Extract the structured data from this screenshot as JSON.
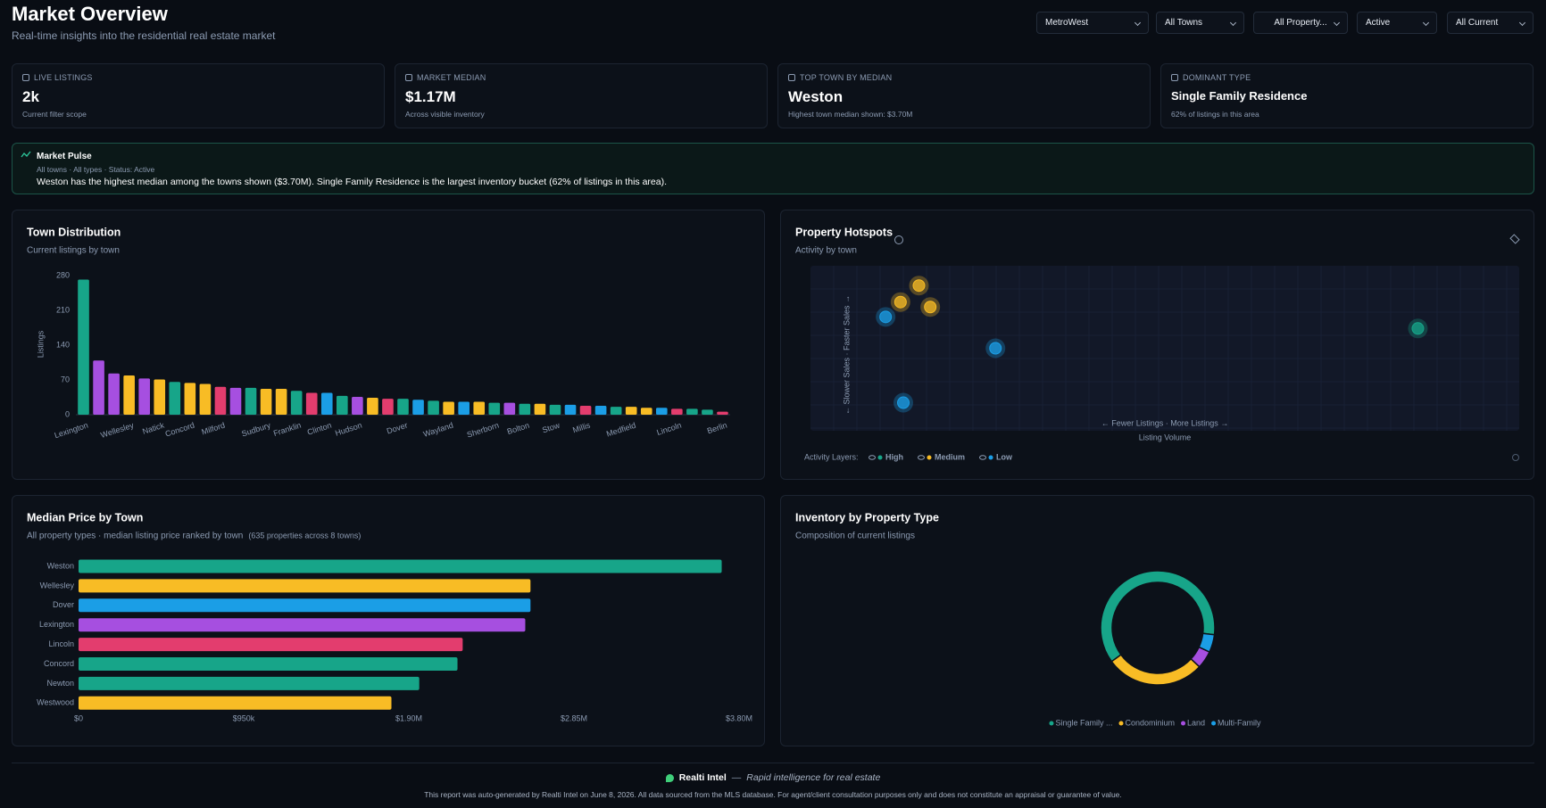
{
  "header": {
    "title": "Market Overview",
    "subtitle": "Real-time insights into the residential real estate market"
  },
  "filters": [
    "MetroWest",
    "All Towns",
    "All Property...",
    "Active",
    "All Current"
  ],
  "kpis": [
    {
      "label": "LIVE LISTINGS",
      "value": "2k",
      "note": "Current filter scope"
    },
    {
      "label": "MARKET MEDIAN",
      "value": "$1.17M",
      "note": "Across visible inventory"
    },
    {
      "label": "TOP TOWN BY MEDIAN",
      "value": "Weston",
      "note": "Highest town median shown: $3.70M"
    },
    {
      "label": "DOMINANT TYPE",
      "value": "Single Family Residence",
      "note": "62% of listings in this area"
    }
  ],
  "pulse": {
    "title": "Market Pulse",
    "meta": "All towns · All types · Status: Active",
    "text": "Weston has the highest median among the towns shown ($3.70M). Single Family Residence is the largest inventory bucket (62% of listings in this area)."
  },
  "chart_data": [
    {
      "type": "bar",
      "title": "Town Distribution",
      "subtitle": "Current listings by town",
      "ylabel": "Listings",
      "categories": [
        "Lexington",
        null,
        null,
        "Wellesley",
        null,
        "Natick",
        null,
        "Concord",
        null,
        "Milford",
        null,
        null,
        "Sudbury",
        null,
        "Franklin",
        null,
        "Clinton",
        null,
        "Hudson",
        null,
        null,
        "Dover",
        null,
        null,
        "Wayland",
        null,
        null,
        "Sherborn",
        null,
        "Bolton",
        null,
        "Stow",
        null,
        "Millis",
        null,
        null,
        "Medfield",
        null,
        null,
        "Lincoln",
        null,
        null,
        "Berlin"
      ],
      "values": [
        272,
        109,
        83,
        79,
        73,
        71,
        66,
        64,
        62,
        56,
        54,
        54,
        52,
        52,
        48,
        44,
        44,
        38,
        36,
        34,
        32,
        32,
        30,
        28,
        26,
        26,
        26,
        24,
        24,
        22,
        22,
        20,
        20,
        18,
        18,
        16,
        16,
        14,
        14,
        12,
        12,
        10,
        6
      ],
      "colors": [
        "#17a589",
        "#a64fe0",
        "#a64fe0",
        "#f8bc25",
        "#a64fe0",
        "#f8bc25",
        "#17a589",
        "#f8bc25",
        "#f8bc25",
        "#e33d6e",
        "#a64fe0",
        "#17a589",
        "#f8bc25",
        "#f8bc25",
        "#17a589",
        "#e33d6e",
        "#1b9ee6",
        "#17a589",
        "#a64fe0",
        "#f8bc25",
        "#e33d6e",
        "#17a589",
        "#1b9ee6",
        "#17a589",
        "#f8bc25",
        "#1b9ee6",
        "#f8bc25",
        "#17a589",
        "#a64fe0",
        "#17a589",
        "#f8bc25",
        "#17a589",
        "#1b9ee6",
        "#e33d6e",
        "#1b9ee6",
        "#17a589",
        "#f8bc25",
        "#f8bc25",
        "#1b9ee6",
        "#e33d6e",
        "#17a589",
        "#17a589",
        "#e33d6e"
      ],
      "ylim": [
        0,
        280
      ],
      "yticks": [
        0,
        70,
        140,
        210,
        280
      ]
    },
    {
      "type": "scatter",
      "title": "Property Hotspots",
      "subtitle": "Activity by town",
      "xlabel": "Listing Volume",
      "xaxis_note": "← Fewer Listings · More Listings →",
      "yaxis_note": "← Slower Sales · Faster Sales →",
      "legend_title": "Activity Layers:",
      "xlim": [
        0,
        100
      ],
      "ylim": [
        0,
        100
      ],
      "series": [
        {
          "name": "High",
          "color": "#17a589",
          "x": [
            85.7
          ],
          "values": [
            62
          ]
        },
        {
          "name": "Medium",
          "color": "#f8bc25",
          "x": [
            15.3,
            12.7,
            16.9
          ],
          "values": [
            88,
            78,
            75
          ]
        },
        {
          "name": "Low",
          "color": "#1b9ee6",
          "x": [
            10.6,
            26.1,
            13.1
          ],
          "values": [
            69,
            50,
            17
          ]
        }
      ]
    },
    {
      "type": "hbar",
      "title": "Median Price by Town",
      "subtitle": "All property types · median listing price ranked by town",
      "note": "(635 properties across 8 towns)",
      "categories": [
        "Weston",
        "Wellesley",
        "Dover",
        "Lexington",
        "Lincoln",
        "Concord",
        "Newton",
        "Westwood"
      ],
      "values": [
        3700000,
        2600000,
        2600000,
        2570000,
        2210000,
        2180000,
        1960000,
        1800000
      ],
      "colors": [
        "#17a589",
        "#f8bc25",
        "#1b9ee6",
        "#a64fe0",
        "#e33d6e",
        "#17a589",
        "#17a589",
        "#f8bc25"
      ],
      "xlim": [
        0,
        3800000
      ],
      "xticks": [
        {
          "value": 0,
          "label": "$0"
        },
        {
          "value": 950000,
          "label": "$950k"
        },
        {
          "value": 1900000,
          "label": "$1.90M"
        },
        {
          "value": 2850000,
          "label": "$2.85M"
        },
        {
          "value": 3800000,
          "label": "$3.80M"
        }
      ]
    },
    {
      "type": "donut",
      "title": "Inventory by Property Type",
      "subtitle": "Composition of current listings",
      "categories": [
        "Single Family ...",
        "Condominium",
        "Land",
        "Multi-Family"
      ],
      "values": [
        62,
        28,
        5,
        5
      ],
      "colors": [
        "#17a589",
        "#f8bc25",
        "#a64fe0",
        "#1b9ee6"
      ]
    }
  ],
  "footer": {
    "brand": "Realti Intel",
    "dash": "—",
    "tagline": "Rapid intelligence for real estate",
    "disclaimer": "This report was auto-generated by Realti Intel on June 8, 2026. All data sourced from the MLS database. For agent/client consultation purposes only and does not constitute an appraisal or guarantee of value."
  }
}
